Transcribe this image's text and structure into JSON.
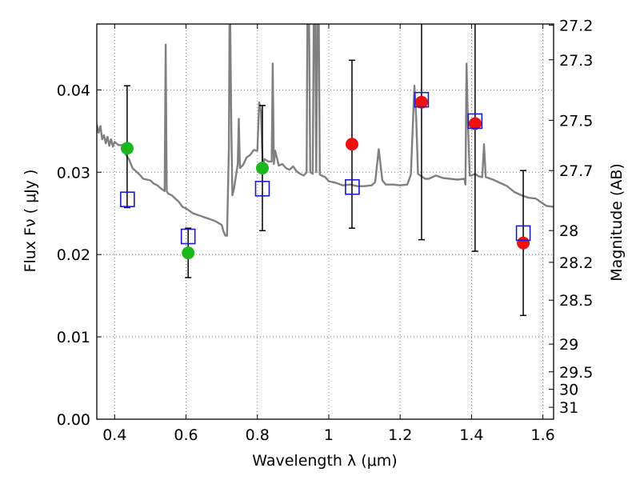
{
  "chart_data": {
    "type": "scatter",
    "xlabel": "Wavelength  λ (μm)",
    "ylabel": "Flux  Fν  ( μJy )",
    "ylabel_right": "Magnitude (AB)",
    "xlim": [
      0.35,
      1.63
    ],
    "ylim": [
      0.0,
      0.048
    ],
    "grid": true,
    "x_ticks": [
      0.4,
      0.6,
      0.8,
      1.0,
      1.2,
      1.4,
      1.6
    ],
    "x_tick_labels": [
      "0.4",
      "0.6",
      "0.8",
      "1",
      "1.2",
      "1.4",
      "1.6"
    ],
    "y_ticks": [
      0.0,
      0.01,
      0.02,
      0.03,
      0.04
    ],
    "y_tick_labels": [
      "0.00",
      "0.01",
      "0.02",
      "0.03",
      "0.04"
    ],
    "mag_ticks": [
      27.2,
      27.3,
      27.5,
      27.7,
      28,
      28.2,
      28.5,
      29,
      29.5,
      30,
      31
    ],
    "mag_tick_labels": [
      "27.2",
      "27.3",
      "27.5",
      "27.7",
      "28",
      "28.2",
      "28.5",
      "29",
      "29.5",
      "30",
      "31"
    ],
    "observed_green": [
      {
        "x": 0.435,
        "y": 0.0329,
        "yerr_low": 0.0257,
        "yerr_high": 0.0405
      },
      {
        "x": 0.606,
        "y": 0.0202,
        "yerr_low": 0.0172,
        "yerr_high": 0.0232
      },
      {
        "x": 0.814,
        "y": 0.0305,
        "yerr_low": 0.0229,
        "yerr_high": 0.0381
      }
    ],
    "observed_red": [
      {
        "x": 1.065,
        "y": 0.0334,
        "yerr_low": 0.0232,
        "yerr_high": 0.0436
      },
      {
        "x": 1.26,
        "y": 0.0385,
        "yerr_low": 0.0218,
        "yerr_high": 0.05
      },
      {
        "x": 1.41,
        "y": 0.0359,
        "yerr_low": 0.0204,
        "yerr_high": 0.05
      },
      {
        "x": 1.545,
        "y": 0.0214,
        "yerr_low": 0.0126,
        "yerr_high": 0.0302
      }
    ],
    "model_points": [
      {
        "x": 0.436,
        "y": 0.0267
      },
      {
        "x": 0.606,
        "y": 0.0222
      },
      {
        "x": 0.814,
        "y": 0.028
      },
      {
        "x": 1.066,
        "y": 0.0282
      },
      {
        "x": 1.26,
        "y": 0.0388
      },
      {
        "x": 1.41,
        "y": 0.0362
      },
      {
        "x": 1.545,
        "y": 0.0226
      }
    ],
    "spectrum": [
      [
        0.35,
        0.0358
      ],
      [
        0.355,
        0.0348
      ],
      [
        0.36,
        0.0356
      ],
      [
        0.365,
        0.034
      ],
      [
        0.37,
        0.0345
      ],
      [
        0.375,
        0.0335
      ],
      [
        0.38,
        0.0343
      ],
      [
        0.385,
        0.0332
      ],
      [
        0.39,
        0.034
      ],
      [
        0.395,
        0.0331
      ],
      [
        0.4,
        0.0337
      ],
      [
        0.41,
        0.0333
      ],
      [
        0.42,
        0.0333
      ],
      [
        0.43,
        0.0322
      ],
      [
        0.44,
        0.0316
      ],
      [
        0.45,
        0.0305
      ],
      [
        0.46,
        0.0301
      ],
      [
        0.47,
        0.0297
      ],
      [
        0.48,
        0.0292
      ],
      [
        0.49,
        0.0291
      ],
      [
        0.5,
        0.029
      ],
      [
        0.51,
        0.0286
      ],
      [
        0.52,
        0.0284
      ],
      [
        0.53,
        0.028
      ],
      [
        0.54,
        0.0277
      ],
      [
        0.543,
        0.0455
      ],
      [
        0.546,
        0.0277
      ],
      [
        0.55,
        0.0274
      ],
      [
        0.56,
        0.0272
      ],
      [
        0.57,
        0.0268
      ],
      [
        0.58,
        0.0264
      ],
      [
        0.59,
        0.0258
      ],
      [
        0.6,
        0.0256
      ],
      [
        0.62,
        0.025
      ],
      [
        0.64,
        0.0247
      ],
      [
        0.66,
        0.0244
      ],
      [
        0.68,
        0.0241
      ],
      [
        0.7,
        0.0236
      ],
      [
        0.705,
        0.0228
      ],
      [
        0.71,
        0.0223
      ],
      [
        0.715,
        0.0223
      ],
      [
        0.72,
        0.033
      ],
      [
        0.722,
        0.048
      ],
      [
        0.724,
        0.048
      ],
      [
        0.727,
        0.035
      ],
      [
        0.73,
        0.0272
      ],
      [
        0.735,
        0.0281
      ],
      [
        0.74,
        0.0296
      ],
      [
        0.745,
        0.031
      ],
      [
        0.748,
        0.0365
      ],
      [
        0.751,
        0.0305
      ],
      [
        0.76,
        0.0309
      ],
      [
        0.77,
        0.0318
      ],
      [
        0.78,
        0.0321
      ],
      [
        0.79,
        0.0327
      ],
      [
        0.8,
        0.0326
      ],
      [
        0.805,
        0.0385
      ],
      [
        0.81,
        0.0374
      ],
      [
        0.815,
        0.0308
      ],
      [
        0.82,
        0.0316
      ],
      [
        0.83,
        0.0313
      ],
      [
        0.84,
        0.0313
      ],
      [
        0.843,
        0.0432
      ],
      [
        0.846,
        0.031
      ],
      [
        0.85,
        0.0326
      ],
      [
        0.86,
        0.0308
      ],
      [
        0.87,
        0.031
      ],
      [
        0.88,
        0.0305
      ],
      [
        0.89,
        0.0303
      ],
      [
        0.9,
        0.0307
      ],
      [
        0.91,
        0.0301
      ],
      [
        0.92,
        0.0298
      ],
      [
        0.93,
        0.0296
      ],
      [
        0.938,
        0.03
      ],
      [
        0.94,
        0.048
      ],
      [
        0.945,
        0.048
      ],
      [
        0.948,
        0.03
      ],
      [
        0.955,
        0.0298
      ],
      [
        0.958,
        0.048
      ],
      [
        0.962,
        0.048
      ],
      [
        0.965,
        0.03
      ],
      [
        0.968,
        0.048
      ],
      [
        0.972,
        0.048
      ],
      [
        0.975,
        0.0297
      ],
      [
        0.98,
        0.0296
      ],
      [
        0.99,
        0.0294
      ],
      [
        1.0,
        0.0289
      ],
      [
        1.02,
        0.0287
      ],
      [
        1.04,
        0.0284
      ],
      [
        1.06,
        0.0285
      ],
      [
        1.08,
        0.0283
      ],
      [
        1.1,
        0.0283
      ],
      [
        1.12,
        0.0284
      ],
      [
        1.13,
        0.0288
      ],
      [
        1.14,
        0.0328
      ],
      [
        1.15,
        0.029
      ],
      [
        1.16,
        0.0285
      ],
      [
        1.18,
        0.0285
      ],
      [
        1.2,
        0.0284
      ],
      [
        1.22,
        0.0285
      ],
      [
        1.23,
        0.0297
      ],
      [
        1.24,
        0.0405
      ],
      [
        1.245,
        0.0365
      ],
      [
        1.25,
        0.0298
      ],
      [
        1.26,
        0.0295
      ],
      [
        1.27,
        0.0292
      ],
      [
        1.28,
        0.0292
      ],
      [
        1.3,
        0.0296
      ],
      [
        1.32,
        0.0293
      ],
      [
        1.34,
        0.0292
      ],
      [
        1.36,
        0.0291
      ],
      [
        1.38,
        0.0292
      ],
      [
        1.383,
        0.0285
      ],
      [
        1.386,
        0.0432
      ],
      [
        1.39,
        0.036
      ],
      [
        1.395,
        0.0296
      ],
      [
        1.4,
        0.0296
      ],
      [
        1.41,
        0.0298
      ],
      [
        1.42,
        0.0295
      ],
      [
        1.43,
        0.0294
      ],
      [
        1.435,
        0.0334
      ],
      [
        1.44,
        0.0294
      ],
      [
        1.46,
        0.0291
      ],
      [
        1.48,
        0.0287
      ],
      [
        1.5,
        0.0283
      ],
      [
        1.52,
        0.0276
      ],
      [
        1.54,
        0.0272
      ],
      [
        1.56,
        0.0269
      ],
      [
        1.58,
        0.0268
      ],
      [
        1.6,
        0.0262
      ],
      [
        1.61,
        0.0259
      ],
      [
        1.63,
        0.0258
      ]
    ],
    "colors": {
      "spectrum": "#808080",
      "green": "#1bb81b",
      "red": "#ee1111",
      "model": "#1a1acc",
      "errorbar": "#000000",
      "grid": "#666666"
    }
  }
}
